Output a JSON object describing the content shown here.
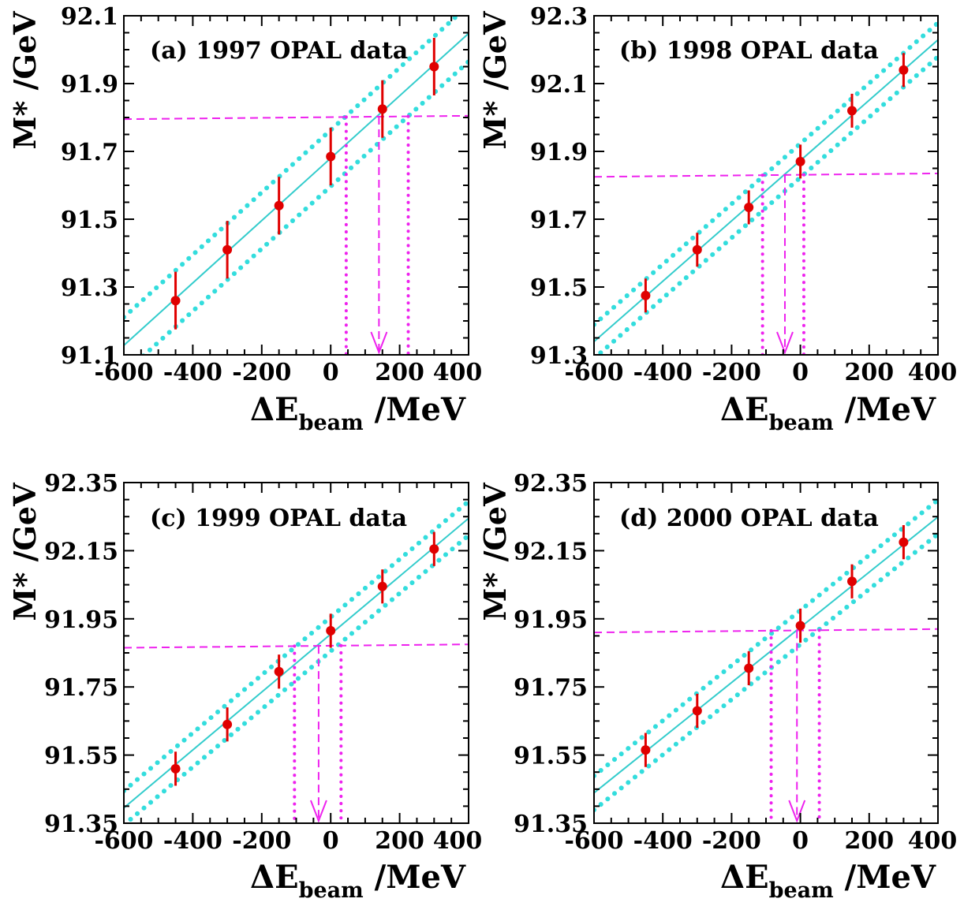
{
  "colors": {
    "fit_line": "#33cccc",
    "band": "#33dddd",
    "points": "#e00000",
    "error_bars": "#e00000",
    "intersection": "#ee22ee",
    "frame": "#000000"
  },
  "chart_data": [
    {
      "type": "scatter",
      "title": "(a) 1997 OPAL data",
      "ylabel": "M* /GeV",
      "xlabel": "ΔE",
      "xlabel_sub": "beam",
      "xlabel_unit": " /MeV",
      "xlim": [
        -600,
        400
      ],
      "ylim": [
        91.1,
        92.1
      ],
      "xticks": [
        "-600",
        "-400",
        "-200",
        "0",
        "200",
        "400"
      ],
      "yticks": [
        "91.1",
        "91.3",
        "91.5",
        "91.7",
        "91.9",
        "92.1"
      ],
      "points": {
        "x": [
          -450,
          -300,
          -150,
          0,
          150,
          300
        ],
        "y": [
          91.26,
          91.41,
          91.54,
          91.685,
          91.825,
          91.95
        ],
        "err": [
          0.085,
          0.085,
          0.085,
          0.085,
          0.085,
          0.085
        ]
      },
      "fit": {
        "slope": 0.00092,
        "intercept": 91.68,
        "band": 0.083
      },
      "measured": {
        "y_left": 91.795,
        "y_right": 91.805,
        "x": 140,
        "x_lo": 45,
        "x_hi": 225
      }
    },
    {
      "type": "scatter",
      "title": "(b) 1998 OPAL data",
      "ylabel": "M* /GeV",
      "xlabel": "ΔE",
      "xlabel_sub": "beam",
      "xlabel_unit": " /MeV",
      "xlim": [
        -600,
        400
      ],
      "ylim": [
        91.3,
        92.3
      ],
      "xticks": [
        "-600",
        "-400",
        "-200",
        "0",
        "200",
        "400"
      ],
      "yticks": [
        "91.3",
        "91.5",
        "91.7",
        "91.9",
        "92.1",
        "92.3"
      ],
      "points": {
        "x": [
          -450,
          -300,
          -150,
          0,
          150,
          300
        ],
        "y": [
          91.475,
          91.61,
          91.735,
          91.87,
          92.02,
          92.14
        ],
        "err": [
          0.05,
          0.05,
          0.05,
          0.05,
          0.05,
          0.05
        ]
      },
      "fit": {
        "slope": 0.00089,
        "intercept": 91.873,
        "band": 0.05
      },
      "measured": {
        "y_left": 91.825,
        "y_right": 91.835,
        "x": -45,
        "x_lo": -110,
        "x_hi": 10
      }
    },
    {
      "type": "scatter",
      "title": "(c) 1999 OPAL data",
      "ylabel": "M* /GeV",
      "xlabel": "ΔE",
      "xlabel_sub": "beam",
      "xlabel_unit": " /MeV",
      "xlim": [
        -600,
        400
      ],
      "ylim": [
        91.35,
        92.35
      ],
      "xticks": [
        "-600",
        "-400",
        "-200",
        "0",
        "200",
        "400"
      ],
      "yticks": [
        "91.35",
        "91.55",
        "91.75",
        "91.95",
        "92.15",
        "92.35"
      ],
      "points": {
        "x": [
          -450,
          -300,
          -150,
          0,
          150,
          300
        ],
        "y": [
          91.51,
          91.64,
          91.795,
          91.915,
          92.045,
          92.155
        ],
        "err": [
          0.05,
          0.05,
          0.05,
          0.05,
          0.05,
          0.05
        ]
      },
      "fit": {
        "slope": 0.00085,
        "intercept": 91.905,
        "band": 0.05
      },
      "measured": {
        "y_left": 91.865,
        "y_right": 91.875,
        "x": -35,
        "x_lo": -105,
        "x_hi": 30
      }
    },
    {
      "type": "scatter",
      "title": "(d) 2000 OPAL data",
      "ylabel": "M* /GeV",
      "xlabel": "ΔE",
      "xlabel_sub": "beam",
      "xlabel_unit": " /MeV",
      "xlim": [
        -600,
        400
      ],
      "ylim": [
        91.35,
        92.35
      ],
      "xticks": [
        "-600",
        "-400",
        "-200",
        "0",
        "200",
        "400"
      ],
      "yticks": [
        "91.35",
        "91.55",
        "91.75",
        "91.95",
        "92.15",
        "92.35"
      ],
      "points": {
        "x": [
          -450,
          -300,
          -150,
          0,
          150,
          300
        ],
        "y": [
          91.565,
          91.68,
          91.805,
          91.93,
          92.06,
          92.175
        ],
        "err": [
          0.05,
          0.05,
          0.05,
          0.05,
          0.05,
          0.05
        ]
      },
      "fit": {
        "slope": 0.00081,
        "intercept": 91.925,
        "band": 0.05
      },
      "measured": {
        "y_left": 91.91,
        "y_right": 91.92,
        "x": -10,
        "x_lo": -85,
        "x_hi": 55
      }
    }
  ]
}
